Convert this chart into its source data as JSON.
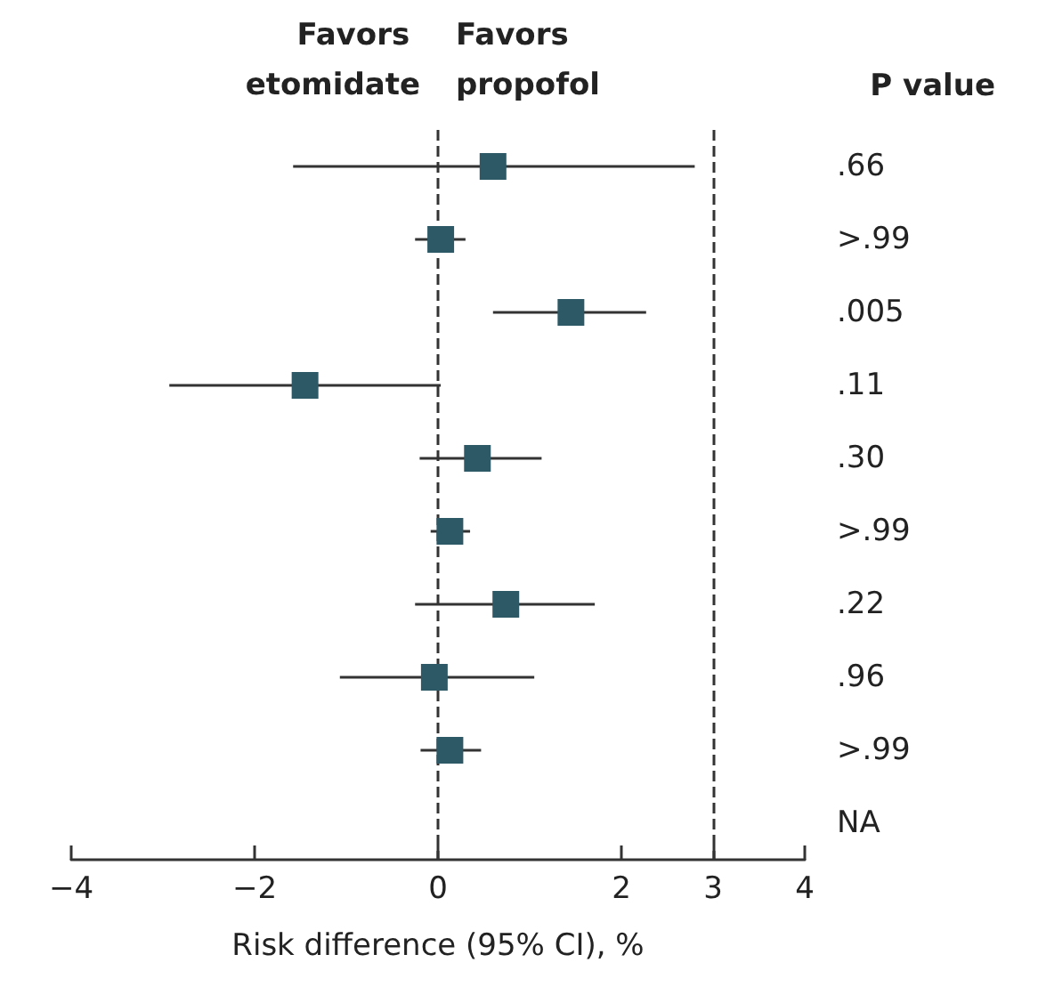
{
  "chart_data": {
    "type": "scatter",
    "xlabel": "Risk difference (95% CI), %",
    "y2label": "P value",
    "annotations": [
      "Favors etomidate",
      "Favors propofol"
    ],
    "categories": [
      ".66",
      ">.99",
      ".005",
      ".11",
      ".30",
      ">.99",
      ".22",
      ".96",
      ">.99",
      "NA"
    ],
    "series": [
      {
        "color": "#2d5866",
        "values": [
          0.6,
          0.03,
          1.45,
          -1.45,
          0.43,
          0.13,
          0.74,
          -0.04,
          0.13,
          null
        ],
        "errors": [
          [
            -1.58,
            2.8
          ],
          [
            -0.25,
            0.3
          ],
          [
            0.6,
            2.27
          ],
          [
            -2.93,
            0.03
          ],
          [
            -0.2,
            1.13
          ],
          [
            -0.08,
            0.35
          ],
          [
            -0.25,
            1.71
          ],
          [
            -1.07,
            1.05
          ],
          [
            -0.19,
            0.47
          ],
          null
        ]
      }
    ],
    "orientation": "horizontal",
    "xlim": [
      -4,
      4
    ],
    "xticks": [
      -4,
      -2,
      0,
      2,
      3,
      4
    ],
    "ref_lines": [
      {
        "axis": "x",
        "value": 0,
        "line_style": "dashed"
      },
      {
        "axis": "x",
        "value": 3,
        "line_style": "dashed"
      }
    ],
    "marker": "square",
    "grid": false
  }
}
